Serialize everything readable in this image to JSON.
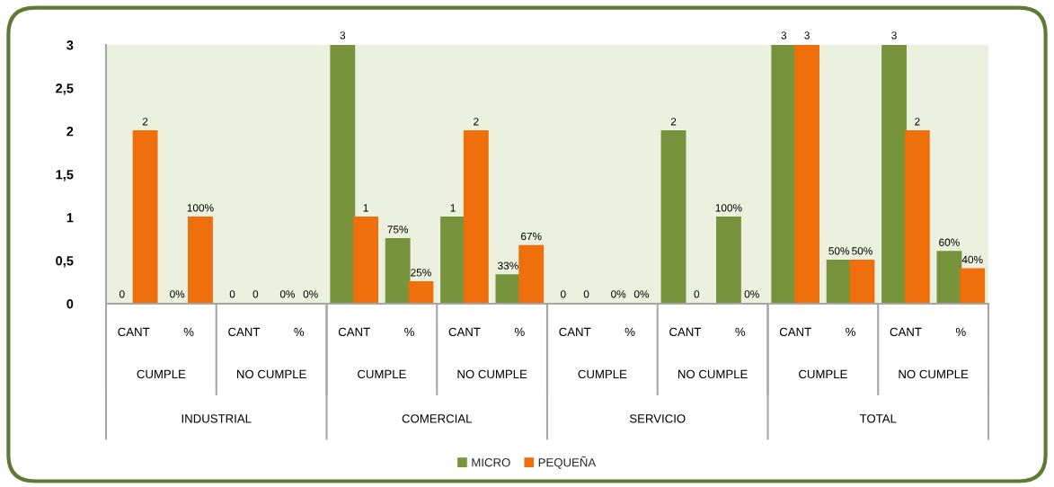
{
  "chart_data": {
    "type": "bar",
    "categories": [
      "CANT",
      "%",
      "CANT",
      "%",
      "CANT",
      "%",
      "CANT",
      "%",
      "CANT",
      "%",
      "CANT",
      "%",
      "CANT",
      "%",
      "CANT",
      "%"
    ],
    "series": [
      {
        "name": "MICRO",
        "color": "#77933c",
        "values": [
          0,
          0,
          0,
          0,
          3,
          0.75,
          1,
          0.33,
          0,
          0,
          2,
          1,
          3,
          0.5,
          3,
          0.6
        ],
        "value_labels": [
          "0",
          "0%",
          "0",
          "0%",
          "3",
          "75%",
          "1",
          "33%",
          "0",
          "0%",
          "2",
          "100%",
          "3",
          "50%",
          "3",
          "60%"
        ]
      },
      {
        "name": "PEQUEÑA",
        "color": "#ef6f0c",
        "values": [
          2,
          1,
          0,
          0,
          1,
          0.25,
          2,
          0.67,
          0,
          0,
          0,
          0,
          3,
          0.5,
          2,
          0.4
        ],
        "value_labels": [
          "2",
          "100%",
          "0",
          "0%",
          "1",
          "25%",
          "2",
          "67%",
          "0",
          "0%",
          "0",
          "0%",
          "3",
          "50%",
          "2",
          "40%"
        ]
      }
    ],
    "ylim": [
      0,
      3
    ],
    "yticks": [
      0,
      {
        "value": 0.5,
        "label": "0,5"
      },
      1,
      {
        "value": 1.5,
        "label": "1,5"
      },
      2,
      {
        "value": 2.5,
        "label": "2,5"
      },
      3
    ],
    "annotations": [
      "CUMPLE",
      "NO CUMPLE",
      "CUMPLE",
      "NO CUMPLE",
      "CUMPLE",
      "NO CUMPLE",
      "CUMPLE",
      "NO CUMPLE",
      "INDUSTRIAL",
      "COMERCIAL",
      "SERVICIO",
      "TOTAL"
    ],
    "legend": "bottom"
  }
}
